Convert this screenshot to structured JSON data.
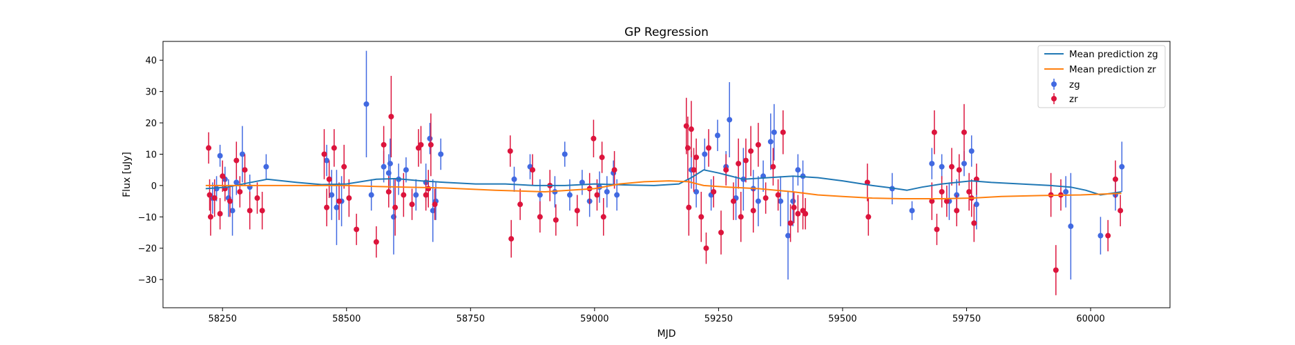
{
  "chart_data": {
    "type": "scatter",
    "title": "GP Regression",
    "xlabel": "MJD",
    "ylabel": "Flux [uJy]",
    "xlim": [
      58130,
      60160
    ],
    "ylim": [
      -39,
      46
    ],
    "xticks": [
      58250,
      58500,
      58750,
      59000,
      59250,
      59500,
      59750,
      60000
    ],
    "yticks": [
      -30,
      -20,
      -10,
      0,
      10,
      20,
      30,
      40
    ],
    "grid": false,
    "legend_position": "top-right",
    "legend": [
      "Mean prediction zg",
      "Mean prediction zr",
      "zg",
      "zr"
    ],
    "colors": {
      "zg_line": "#1f77b4",
      "zr_line": "#ff7f0e",
      "zg_points": "#4169e1",
      "zr_points": "#dc143c"
    },
    "series": [
      {
        "name": "Mean prediction zg",
        "kind": "line",
        "x": [
          58216,
          58260,
          58300,
          58340,
          58400,
          58450,
          58500,
          58560,
          58600,
          58650,
          58700,
          58760,
          58820,
          58880,
          58940,
          59000,
          59060,
          59120,
          59170,
          59195,
          59220,
          59250,
          59300,
          59350,
          59400,
          59450,
          59500,
          59560,
          59600,
          59630,
          59660,
          59700,
          59760,
          59800,
          59860,
          59920,
          59960,
          59990,
          60020,
          60062
        ],
        "y": [
          -1,
          -0.5,
          0.8,
          2,
          1,
          0.3,
          0.5,
          2,
          2.2,
          1.5,
          1,
          0.5,
          0.5,
          0,
          0,
          0.5,
          0.2,
          0,
          0.5,
          2.5,
          5,
          4,
          2,
          2.5,
          3,
          2.5,
          1.5,
          0,
          -0.8,
          -1.5,
          -0.5,
          0.5,
          1.5,
          1,
          0.5,
          0,
          -0.5,
          -1.5,
          -3,
          -2
        ]
      },
      {
        "name": "Mean prediction zr",
        "kind": "line",
        "x": [
          58216,
          58300,
          58400,
          58500,
          58560,
          58620,
          58700,
          58800,
          58900,
          59000,
          59050,
          59100,
          59150,
          59190,
          59220,
          59270,
          59330,
          59400,
          59450,
          59500,
          59560,
          59620,
          59700,
          59760,
          59820,
          59900,
          59980,
          60062
        ],
        "y": [
          0,
          0,
          0,
          0,
          -0.3,
          -0.5,
          -0.8,
          -1.5,
          -2,
          -1,
          0.5,
          1.2,
          1.5,
          1.2,
          0,
          -0.5,
          -1,
          -2,
          -3,
          -3.5,
          -4,
          -4.2,
          -4.2,
          -4,
          -3.5,
          -3.2,
          -3,
          -2.5
        ]
      },
      {
        "name": "zg",
        "kind": "errorbar",
        "points": [
          [
            58230,
            -4,
            5
          ],
          [
            58238,
            -1,
            4
          ],
          [
            58245,
            9.5,
            3.5
          ],
          [
            58255,
            2,
            4
          ],
          [
            58262,
            -4,
            6
          ],
          [
            58270,
            -8,
            8
          ],
          [
            58278,
            1,
            4
          ],
          [
            58290,
            10,
            9
          ],
          [
            58305,
            -0.5,
            4
          ],
          [
            58338,
            6,
            4
          ],
          [
            58460,
            8,
            5
          ],
          [
            58470,
            -3,
            8
          ],
          [
            58480,
            -7,
            12
          ],
          [
            58490,
            -5,
            8
          ],
          [
            58540,
            26,
            17
          ],
          [
            58550,
            -3,
            5
          ],
          [
            58575,
            6,
            5
          ],
          [
            58585,
            4,
            6
          ],
          [
            58588,
            7,
            8
          ],
          [
            58595,
            -10,
            12
          ],
          [
            58605,
            2,
            5
          ],
          [
            58620,
            5,
            4
          ],
          [
            58640,
            -3,
            5
          ],
          [
            58660,
            1,
            6
          ],
          [
            58668,
            15,
            5
          ],
          [
            58674,
            -8,
            10
          ],
          [
            58680,
            -5,
            6
          ],
          [
            58690,
            10,
            5
          ],
          [
            58838,
            2,
            4
          ],
          [
            58870,
            6,
            4
          ],
          [
            58890,
            -3,
            5
          ],
          [
            58920,
            -2,
            5
          ],
          [
            58940,
            10,
            4
          ],
          [
            58950,
            -3,
            5
          ],
          [
            58975,
            1,
            4
          ],
          [
            58990,
            -5,
            5
          ],
          [
            59010,
            -0.5,
            5
          ],
          [
            59025,
            -2,
            5
          ],
          [
            59038,
            4,
            4
          ],
          [
            59045,
            -3,
            5
          ],
          [
            59195,
            5,
            6
          ],
          [
            59205,
            -2,
            5
          ],
          [
            59222,
            10,
            5
          ],
          [
            59235,
            -3,
            5
          ],
          [
            59248,
            16,
            5
          ],
          [
            59265,
            6,
            5
          ],
          [
            59272,
            21,
            12
          ],
          [
            59285,
            -4,
            7
          ],
          [
            59300,
            2,
            10
          ],
          [
            59320,
            -1,
            6
          ],
          [
            59330,
            -5,
            8
          ],
          [
            59340,
            3,
            5
          ],
          [
            59355,
            14,
            9
          ],
          [
            59362,
            17,
            9
          ],
          [
            59375,
            -5,
            8
          ],
          [
            59390,
            -16,
            14
          ],
          [
            59400,
            -5,
            8
          ],
          [
            59410,
            5,
            5
          ],
          [
            59420,
            3,
            5
          ],
          [
            59600,
            -1,
            5
          ],
          [
            59640,
            -8,
            3
          ],
          [
            59680,
            7,
            5
          ],
          [
            59700,
            6,
            4
          ],
          [
            59715,
            -5,
            6
          ],
          [
            59730,
            -3,
            5
          ],
          [
            59745,
            7,
            4
          ],
          [
            59760,
            11,
            5
          ],
          [
            59770,
            -6,
            8
          ],
          [
            59950,
            -2,
            5
          ],
          [
            59960,
            -13,
            17
          ],
          [
            60020,
            -16,
            6
          ],
          [
            60050,
            -3,
            5
          ],
          [
            60063,
            6,
            8
          ]
        ]
      },
      {
        "name": "zr",
        "kind": "errorbar",
        "points": [
          [
            58222,
            12,
            5
          ],
          [
            58224,
            -3,
            5
          ],
          [
            58226,
            -10,
            6
          ],
          [
            58234,
            -4,
            6
          ],
          [
            58245,
            -9,
            5
          ],
          [
            58250,
            3,
            5
          ],
          [
            58255,
            -1,
            4
          ],
          [
            58265,
            -5,
            5
          ],
          [
            58278,
            8,
            6
          ],
          [
            58285,
            -2,
            5
          ],
          [
            58295,
            5,
            5
          ],
          [
            58305,
            -8,
            6
          ],
          [
            58320,
            -4,
            5
          ],
          [
            58330,
            -8,
            6
          ],
          [
            58455,
            10,
            8
          ],
          [
            58460,
            -7,
            6
          ],
          [
            58465,
            2,
            6
          ],
          [
            58475,
            12,
            6
          ],
          [
            58485,
            -5,
            6
          ],
          [
            58495,
            6,
            7
          ],
          [
            58505,
            -4,
            6
          ],
          [
            58520,
            -14,
            5
          ],
          [
            58560,
            -18,
            5
          ],
          [
            58575,
            13,
            6
          ],
          [
            58585,
            -2,
            5
          ],
          [
            58590,
            22,
            13
          ],
          [
            58598,
            -7,
            9
          ],
          [
            58615,
            -3,
            7
          ],
          [
            58632,
            -6,
            5
          ],
          [
            58645,
            12,
            6
          ],
          [
            58650,
            13,
            6
          ],
          [
            58660,
            -3,
            5
          ],
          [
            58665,
            -1,
            6
          ],
          [
            58670,
            13,
            10
          ],
          [
            58678,
            -6,
            5
          ],
          [
            58830,
            11,
            5
          ],
          [
            58832,
            -17,
            6
          ],
          [
            58850,
            -6,
            5
          ],
          [
            58875,
            5,
            5
          ],
          [
            58890,
            -10,
            5
          ],
          [
            58910,
            0,
            5
          ],
          [
            58922,
            -11,
            5
          ],
          [
            58965,
            -8,
            5
          ],
          [
            58990,
            -1,
            5
          ],
          [
            58998,
            15,
            6
          ],
          [
            59005,
            -3,
            5
          ],
          [
            59015,
            9,
            5
          ],
          [
            59018,
            -10,
            6
          ],
          [
            59040,
            5,
            6
          ],
          [
            59185,
            19,
            9
          ],
          [
            59188,
            12,
            10
          ],
          [
            59190,
            -7,
            9
          ],
          [
            59195,
            18,
            9
          ],
          [
            59200,
            5,
            7
          ],
          [
            59205,
            9,
            6
          ],
          [
            59215,
            -10,
            8
          ],
          [
            59225,
            -20,
            5
          ],
          [
            59230,
            12,
            6
          ],
          [
            59240,
            -2,
            5
          ],
          [
            59255,
            -15,
            7
          ],
          [
            59265,
            5,
            5
          ],
          [
            59280,
            -5,
            6
          ],
          [
            59290,
            7,
            8
          ],
          [
            59295,
            -10,
            8
          ],
          [
            59305,
            8,
            7
          ],
          [
            59315,
            11,
            8
          ],
          [
            59320,
            -8,
            7
          ],
          [
            59330,
            13,
            7
          ],
          [
            59345,
            -4,
            5
          ],
          [
            59360,
            6,
            6
          ],
          [
            59370,
            -3,
            5
          ],
          [
            59380,
            17,
            7
          ],
          [
            59395,
            -12,
            6
          ],
          [
            59402,
            -7,
            5
          ],
          [
            59410,
            -9,
            6
          ],
          [
            59420,
            -8,
            6
          ],
          [
            59425,
            -9,
            5
          ],
          [
            59550,
            1,
            6
          ],
          [
            59552,
            -10,
            6
          ],
          [
            59680,
            -5,
            6
          ],
          [
            59685,
            17,
            7
          ],
          [
            59690,
            -14,
            5
          ],
          [
            59700,
            -2,
            5
          ],
          [
            59710,
            -5,
            5
          ],
          [
            59720,
            6,
            6
          ],
          [
            59730,
            -8,
            5
          ],
          [
            59735,
            5,
            5
          ],
          [
            59745,
            17,
            9
          ],
          [
            59755,
            -2,
            6
          ],
          [
            59760,
            -4,
            6
          ],
          [
            59765,
            -12,
            6
          ],
          [
            59770,
            2,
            5
          ],
          [
            59920,
            -3,
            7
          ],
          [
            59930,
            -27,
            8
          ],
          [
            59940,
            -3,
            5
          ],
          [
            60035,
            -16,
            5
          ],
          [
            60050,
            2,
            6
          ],
          [
            60060,
            -8,
            5
          ]
        ]
      }
    ]
  }
}
